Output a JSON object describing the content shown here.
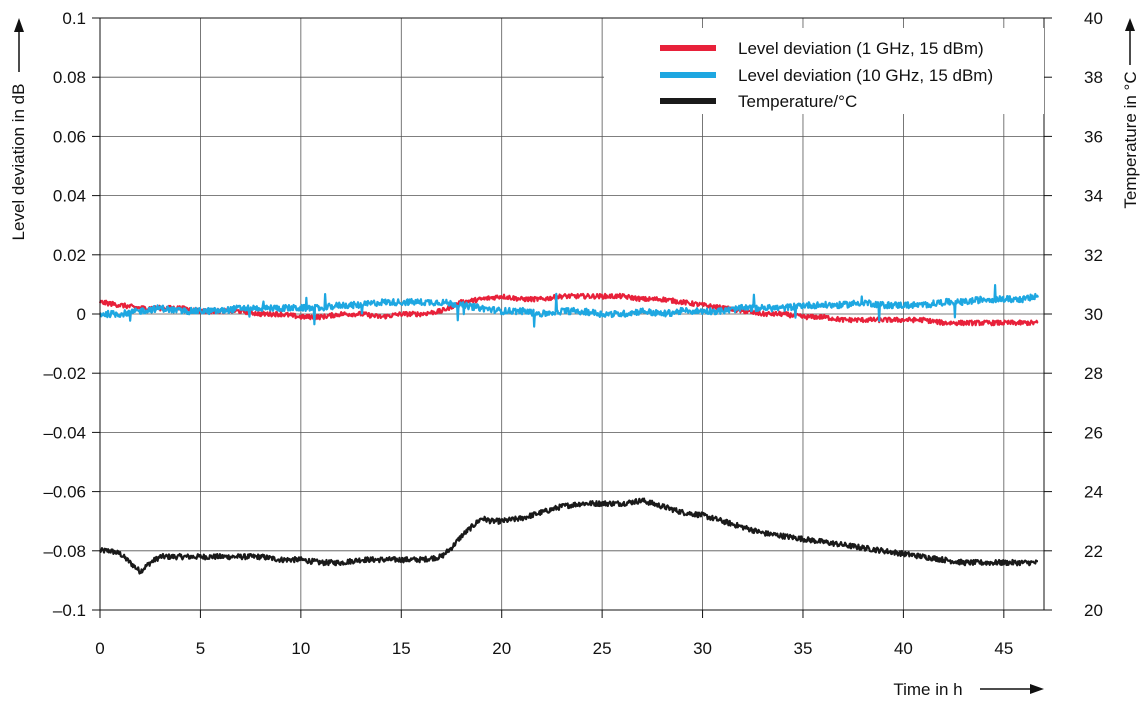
{
  "chart_data": {
    "type": "line",
    "xlabel": "Time in h",
    "ylabel": "Level deviation in dB",
    "y2label": "Temperature in °C",
    "xlim": [
      0,
      47
    ],
    "ylim": [
      -0.1,
      0.1
    ],
    "y2lim": [
      20,
      40
    ],
    "x_ticks": [
      0,
      5,
      10,
      15,
      20,
      25,
      30,
      35,
      40,
      45
    ],
    "x_tick_labels": [
      "0",
      "5",
      "10",
      "15",
      "20",
      "25",
      "30",
      "35",
      "40",
      "45"
    ],
    "y_ticks": [
      0.1,
      0.08,
      0.06,
      0.04,
      0.02,
      0,
      -0.02,
      -0.04,
      -0.06,
      -0.08,
      -0.1
    ],
    "y_tick_labels": [
      "0.1",
      "0.08",
      "0.06",
      "0.04",
      "0.02",
      "0",
      "–0.02",
      "–0.04",
      "–0.06",
      "–0.08",
      "–0.1"
    ],
    "y2_ticks": [
      40,
      38,
      36,
      34,
      32,
      30,
      28,
      26,
      24,
      22,
      20
    ],
    "y2_tick_labels": [
      "40",
      "38",
      "36",
      "34",
      "32",
      "30",
      "28",
      "26",
      "24",
      "22",
      "20"
    ],
    "grid": true,
    "legend_position": "top-right",
    "series": [
      {
        "name": "Level deviation (1 GHz, 15 dBm)",
        "axis": "left",
        "color": "#e8213a",
        "x": [
          0,
          1,
          2,
          3,
          4,
          5,
          6,
          7,
          8,
          9,
          10,
          11,
          12,
          13,
          14,
          15,
          16,
          17,
          18,
          19,
          20,
          21,
          22,
          23,
          24,
          25,
          26,
          27,
          28,
          29,
          30,
          31,
          32,
          33,
          34,
          35,
          36,
          37,
          38,
          39,
          40,
          41,
          42,
          43,
          44,
          45,
          46,
          46.7
        ],
        "y": [
          0.004,
          0.003,
          0.002,
          0.002,
          0.002,
          0.001,
          0.001,
          0.001,
          0.0,
          0.0,
          -0.001,
          -0.001,
          0.0,
          0.0,
          -0.001,
          0.0,
          0.0,
          0.001,
          0.004,
          0.005,
          0.006,
          0.005,
          0.005,
          0.006,
          0.006,
          0.006,
          0.006,
          0.005,
          0.005,
          0.004,
          0.003,
          0.002,
          0.001,
          0.0,
          0.0,
          -0.001,
          -0.001,
          -0.002,
          -0.002,
          -0.002,
          -0.002,
          -0.002,
          -0.003,
          -0.003,
          -0.003,
          -0.003,
          -0.003,
          -0.003
        ]
      },
      {
        "name": "Level deviation (10 GHz, 15 dBm)",
        "axis": "left",
        "color": "#1ea7e1",
        "x": [
          0,
          1,
          2,
          3,
          4,
          5,
          6,
          7,
          8,
          9,
          10,
          11,
          12,
          13,
          14,
          15,
          16,
          17,
          18,
          19,
          20,
          21,
          22,
          23,
          24,
          25,
          26,
          27,
          28,
          29,
          30,
          31,
          32,
          33,
          34,
          35,
          36,
          37,
          38,
          39,
          40,
          41,
          42,
          43,
          44,
          45,
          46,
          46.7
        ],
        "y": [
          0.0,
          0.0,
          0.001,
          0.002,
          0.001,
          0.001,
          0.001,
          0.002,
          0.002,
          0.002,
          0.002,
          0.002,
          0.003,
          0.003,
          0.004,
          0.004,
          0.004,
          0.004,
          0.003,
          0.002,
          0.001,
          0.001,
          0.0,
          0.001,
          0.001,
          0.0,
          0.0,
          0.001,
          0.0,
          0.001,
          0.001,
          0.001,
          0.002,
          0.002,
          0.002,
          0.003,
          0.003,
          0.003,
          0.004,
          0.003,
          0.003,
          0.003,
          0.004,
          0.004,
          0.005,
          0.005,
          0.005,
          0.006
        ]
      },
      {
        "name": "Temperature/°C",
        "axis": "right",
        "color": "#1a1a1a",
        "x": [
          0,
          0.5,
          1,
          1.5,
          2,
          2.5,
          3,
          4,
          5,
          6,
          7,
          8,
          9,
          10,
          11,
          12,
          13,
          14,
          15,
          16,
          17,
          17.5,
          18,
          18.5,
          19,
          19.5,
          20,
          21,
          22,
          23,
          24,
          25,
          26,
          27,
          28,
          29,
          30,
          31,
          32,
          33,
          34,
          35,
          36,
          37,
          38,
          39,
          40,
          41,
          42,
          43,
          44,
          45,
          46,
          46.7
        ],
        "y": [
          22.0,
          22.0,
          21.9,
          21.6,
          21.3,
          21.6,
          21.8,
          21.8,
          21.8,
          21.8,
          21.8,
          21.8,
          21.7,
          21.7,
          21.6,
          21.6,
          21.7,
          21.7,
          21.7,
          21.7,
          21.8,
          22.1,
          22.5,
          22.8,
          23.1,
          23.0,
          23.0,
          23.1,
          23.3,
          23.5,
          23.6,
          23.6,
          23.6,
          23.7,
          23.5,
          23.3,
          23.2,
          23.0,
          22.8,
          22.6,
          22.5,
          22.4,
          22.3,
          22.2,
          22.1,
          22.0,
          21.9,
          21.8,
          21.7,
          21.6,
          21.6,
          21.6,
          21.6,
          21.6
        ]
      }
    ]
  }
}
